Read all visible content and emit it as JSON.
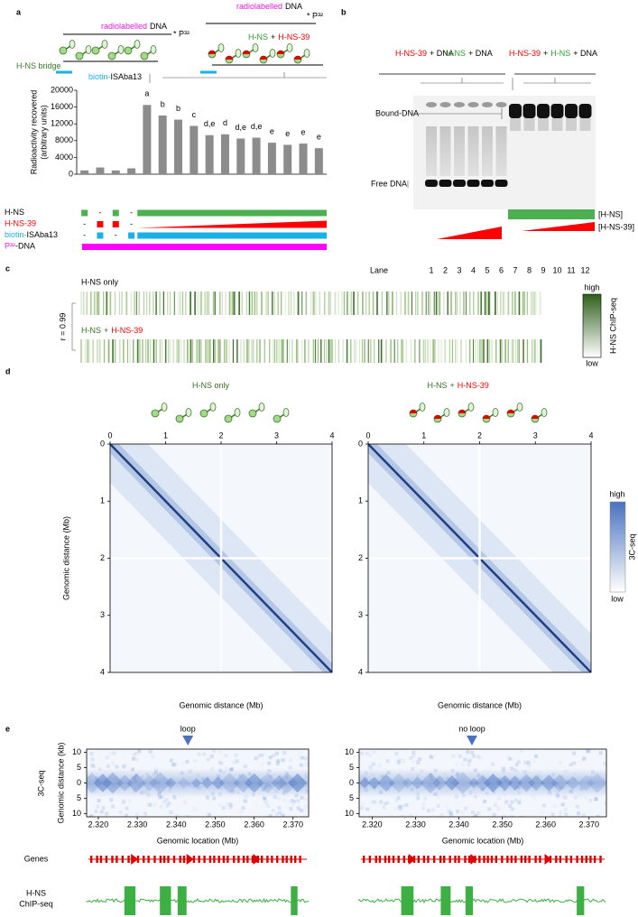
{
  "panel_labels": [
    "a",
    "b",
    "c",
    "d",
    "e"
  ],
  "panel_a": {
    "left_dna": [
      {
        "text": "radiolabelled",
        "color": "#e619e6"
      },
      {
        "text": "DNA",
        "color": "#000000"
      }
    ],
    "right_dna": [
      {
        "text": "radiolabelled",
        "color": "#e619e6"
      },
      {
        "text": "DNA",
        "color": "#000000"
      }
    ],
    "p32_left": "* P³²",
    "p32_right": "* P³²",
    "bridge": [
      {
        "text": "H-NS bridge",
        "color": "#3a7a2a"
      }
    ],
    "right_title": [
      {
        "text": "H-NS",
        "color": "#2e9e2e"
      },
      {
        "text": "+",
        "color": "#000000"
      },
      {
        "text": "H-NS-39",
        "color": "#ff0000"
      }
    ],
    "biotin_top": [
      {
        "text": "biotin-",
        "color": "#1ab2e6"
      },
      {
        "text": "ISAba13",
        "color": "#000000"
      }
    ],
    "dash": "-",
    "legend_rows": [
      {
        "label": [
          {
            "text": "H-NS",
            "color": "#000000"
          }
        ],
        "color": "#4caf50",
        "present": [
          true,
          false,
          true,
          false
        ],
        "ramp": false
      },
      {
        "label": [
          {
            "text": "H-NS-39",
            "color": "#ff0000"
          }
        ],
        "color": "#ff0000",
        "present": [
          false,
          true,
          true,
          false
        ],
        "ramp": true
      },
      {
        "label": [
          {
            "text": "biotin-",
            "color": "#1ab2e6"
          },
          {
            "text": "ISAba13",
            "color": "#000000"
          }
        ],
        "color": "#1ab2e6",
        "present": [
          false,
          true,
          false,
          true
        ],
        "ramp": false
      },
      {
        "label": [
          {
            "text": "P³²",
            "color": "#e619e6"
          },
          {
            "text": "-DNA",
            "color": "#000000"
          }
        ],
        "color": "#ff00ff",
        "present": [
          true,
          true,
          true,
          true
        ],
        "ramp": false
      }
    ]
  },
  "panel_b": {
    "groups": [
      [
        {
          "text": "H-NS-39",
          "color": "#ff0000"
        },
        {
          "text": "+ DNA",
          "color": "#000000"
        }
      ],
      [
        {
          "text": "H-NS",
          "color": "#2e9e2e"
        },
        {
          "text": "+ DNA",
          "color": "#000000"
        }
      ],
      [
        {
          "text": "H-NS-39",
          "color": "#ff0000"
        },
        {
          "text": "+",
          "color": "#000000"
        },
        {
          "text": "H-NS",
          "color": "#2e9e2e"
        },
        {
          "text": "+ DNA",
          "color": "#000000"
        }
      ]
    ],
    "bound_label": "Bound-DNA",
    "free_label": "Free DNA",
    "hns_label": "[H-NS]",
    "hns39_label": "[H-NS-39]",
    "lane_title": "Lane",
    "lanes": [
      1,
      2,
      3,
      4,
      5,
      6,
      7,
      8,
      9,
      10,
      11,
      12
    ]
  },
  "panel_c": {
    "top_title": "H-NS only",
    "bottom_title": [
      {
        "text": "H-NS",
        "color": "#3a6e25"
      },
      {
        "text": "+",
        "color": "#3a6e25"
      },
      {
        "text": "H-NS-39",
        "color": "#ff0000"
      }
    ],
    "r_label": "r = 0.99",
    "high": "high",
    "low": "low",
    "colorbar_label": "H-NS ChIP-seq"
  },
  "panel_d": {
    "high": "high",
    "low": "low",
    "colorbar_label": "3C-seq"
  },
  "panel_e": {
    "side_label": "3C-seq",
    "genes_label": "Genes",
    "chip_label": [
      "H-NS",
      "ChIP-seq"
    ]
  },
  "chart_data": [
    {
      "type": "bar",
      "ylabel": [
        "Radioactivity recovered",
        "(arbitrary units)"
      ],
      "color": "#8c8c8c",
      "categories": [
        null,
        null,
        null,
        null,
        null,
        null,
        null,
        null,
        null,
        null,
        null,
        null,
        null,
        null,
        null,
        null
      ],
      "values": [
        900,
        1600,
        900,
        1400,
        16500,
        14000,
        13000,
        11500,
        9300,
        9500,
        8500,
        8700,
        7500,
        7000,
        7300,
        6200
      ],
      "annotations": [
        null,
        null,
        null,
        null,
        "a",
        "b",
        "b",
        "c",
        "d,e",
        "d",
        "d,e",
        "d,e",
        "e",
        "e",
        "e",
        "e"
      ],
      "ylim": [
        0,
        20000
      ],
      "yticks": [
        0,
        4000,
        8000,
        12000,
        16000,
        20000
      ]
    },
    {
      "type": "heatmap",
      "title": [
        {
          "text": "H-NS only",
          "color": "#3a6e25"
        }
      ],
      "xlabel": "Genomic distance (Mb)",
      "ylabel": "Genomic distance (Mb)",
      "xlim": [
        0,
        4
      ],
      "ylim": [
        0,
        4
      ],
      "xticks": [
        0,
        1,
        2,
        3,
        4
      ],
      "yticks": [
        0,
        1,
        2,
        3,
        4
      ],
      "color": "#1f3f80"
    },
    {
      "type": "heatmap",
      "title": [
        {
          "text": "H-NS",
          "color": "#3a6e25"
        },
        {
          "text": "+",
          "color": "#3a6e25"
        },
        {
          "text": "H-NS-39",
          "color": "#ff0000"
        }
      ],
      "xlabel": "Genomic distance (Mb)",
      "xlim": [
        0,
        4
      ],
      "ylim": [
        0,
        4
      ],
      "xticks": [
        0,
        1,
        2,
        3,
        4
      ],
      "yticks": [
        0,
        1,
        2,
        3,
        4
      ],
      "color": "#1f3f80"
    },
    {
      "type": "heatmap",
      "xlabel": "Genomic location (Mb)",
      "ylabel": "Genomic distance (kb)",
      "annotation": {
        "text": "loop",
        "x": 2.343
      },
      "xlim": [
        2.317,
        2.374
      ],
      "ylim": [
        -11,
        11
      ],
      "xticks": [
        {
          "value": 2.32,
          "label": "2.320"
        },
        {
          "value": 2.33,
          "label": "2.330"
        },
        {
          "value": 2.34,
          "label": "2.340"
        },
        {
          "value": 2.35,
          "label": "2.350"
        },
        {
          "value": 2.36,
          "label": "2.360"
        },
        {
          "value": 2.37,
          "label": "2.370"
        }
      ],
      "yticks": [
        {
          "value": -10,
          "label": "10"
        },
        {
          "value": -5,
          "label": "5"
        },
        0,
        5,
        10
      ],
      "color": "#4a72c0"
    },
    {
      "type": "heatmap",
      "xlabel": "Genomic location (Mb)",
      "annotation": {
        "text": "no loop",
        "x": 2.343
      },
      "xlim": [
        2.317,
        2.374
      ],
      "ylim": [
        -11,
        11
      ],
      "xticks": [
        {
          "value": 2.32,
          "label": "2.320"
        },
        {
          "value": 2.33,
          "label": "2.330"
        },
        {
          "value": 2.34,
          "label": "2.340"
        },
        {
          "value": 2.35,
          "label": "2.350"
        },
        {
          "value": 2.36,
          "label": "2.360"
        },
        {
          "value": 2.37,
          "label": "2.370"
        }
      ],
      "yticks": [
        {
          "value": -10,
          "label": "10"
        },
        {
          "value": -5,
          "label": "5"
        },
        0,
        5,
        10
      ],
      "color": "#4a72c0"
    }
  ]
}
